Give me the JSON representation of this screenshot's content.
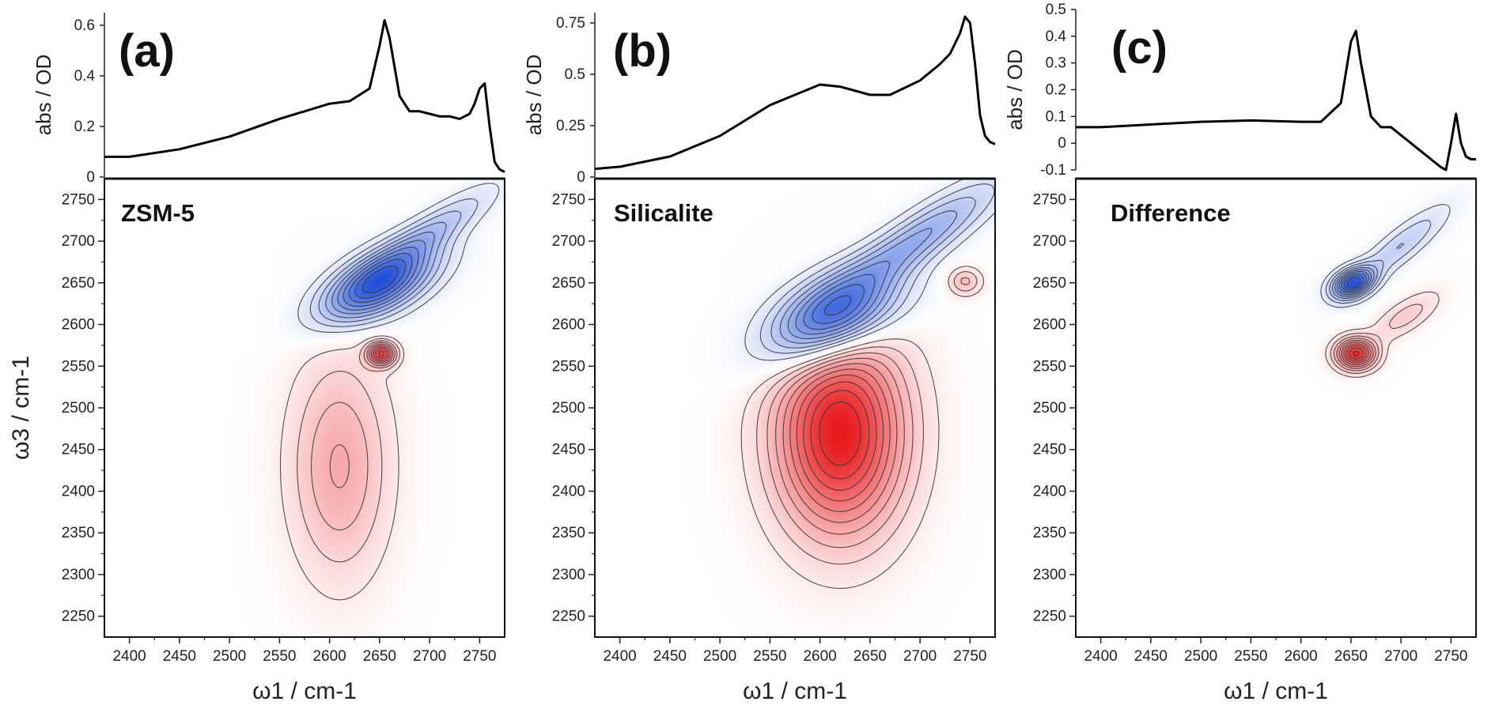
{
  "figure": {
    "colors": {
      "negative": "#1f4fd8",
      "positive": "#e8191c",
      "contour": "#333333",
      "spectrum": "#000000"
    }
  },
  "chart_data": [
    {
      "type": "line",
      "panel": "(a)",
      "sample": "ZSM-5",
      "top": {
        "ylabel": "abs / OD",
        "ylim": [
          0,
          0.65
        ],
        "yticks": [
          "0",
          "0.2",
          "0.4",
          "0.6"
        ],
        "x": [
          2375,
          2400,
          2450,
          2500,
          2550,
          2600,
          2620,
          2640,
          2650,
          2655,
          2660,
          2670,
          2680,
          2690,
          2700,
          2710,
          2720,
          2730,
          2740,
          2745,
          2750,
          2755,
          2760,
          2765,
          2770,
          2775
        ],
        "y": [
          0.08,
          0.08,
          0.11,
          0.16,
          0.23,
          0.29,
          0.3,
          0.35,
          0.52,
          0.62,
          0.55,
          0.32,
          0.26,
          0.26,
          0.25,
          0.24,
          0.24,
          0.23,
          0.25,
          0.29,
          0.35,
          0.37,
          0.2,
          0.06,
          0.03,
          0.02
        ]
      },
      "map": {
        "xlabel": "ω1 / cm-1",
        "ylabel": "ω3 / cm-1",
        "xlim": [
          2375,
          2775
        ],
        "ylim": [
          2225,
          2775
        ],
        "xticks": [
          "2400",
          "2450",
          "2500",
          "2550",
          "2600",
          "2650",
          "2700",
          "2750"
        ],
        "yticks": [
          "2250",
          "2300",
          "2350",
          "2400",
          "2450",
          "2500",
          "2550",
          "2600",
          "2650",
          "2700",
          "2750"
        ],
        "peaks": [
          {
            "sign": -1,
            "x": 2648,
            "y": 2648,
            "amp": 1.0,
            "sx": 45,
            "sy": 22,
            "rot": 35
          },
          {
            "sign": -1,
            "x": 2700,
            "y": 2710,
            "amp": 0.35,
            "sx": 55,
            "sy": 14,
            "rot": 40
          },
          {
            "sign": 1,
            "x": 2652,
            "y": 2565,
            "amp": 0.85,
            "sx": 10,
            "sy": 10,
            "rot": 0
          },
          {
            "sign": 1,
            "x": 2610,
            "y": 2430,
            "amp": 0.4,
            "sx": 35,
            "sy": 95,
            "rot": 0
          }
        ]
      }
    },
    {
      "type": "line",
      "panel": "(b)",
      "sample": "Silicalite",
      "top": {
        "ylabel": "abs / OD",
        "ylim": [
          0,
          0.8
        ],
        "yticks": [
          "0",
          "0.25",
          "0.5",
          "0.75"
        ],
        "x": [
          2375,
          2400,
          2450,
          2500,
          2550,
          2600,
          2620,
          2650,
          2670,
          2700,
          2720,
          2730,
          2740,
          2745,
          2750,
          2755,
          2760,
          2765,
          2770,
          2775
        ],
        "y": [
          0.04,
          0.05,
          0.1,
          0.2,
          0.35,
          0.45,
          0.44,
          0.4,
          0.4,
          0.47,
          0.55,
          0.6,
          0.7,
          0.78,
          0.75,
          0.55,
          0.3,
          0.2,
          0.17,
          0.16
        ]
      },
      "map": {
        "xlabel": "ω1 / cm-1",
        "ylabel": "ω3 / cm-1",
        "xlim": [
          2375,
          2775
        ],
        "ylim": [
          2225,
          2775
        ],
        "xticks": [
          "2400",
          "2450",
          "2500",
          "2550",
          "2600",
          "2650",
          "2700",
          "2750"
        ],
        "yticks": [
          "2250",
          "2300",
          "2350",
          "2400",
          "2450",
          "2500",
          "2550",
          "2600",
          "2650",
          "2700",
          "2750"
        ],
        "peaks": [
          {
            "sign": -1,
            "x": 2612,
            "y": 2610,
            "amp": 1.0,
            "sx": 50,
            "sy": 30,
            "rot": 38
          },
          {
            "sign": -1,
            "x": 2700,
            "y": 2705,
            "amp": 0.45,
            "sx": 70,
            "sy": 18,
            "rot": 40
          },
          {
            "sign": 1,
            "x": 2620,
            "y": 2470,
            "amp": 1.0,
            "sx": 45,
            "sy": 85,
            "rot": 0
          },
          {
            "sign": 1,
            "x": 2745,
            "y": 2652,
            "amp": 0.3,
            "sx": 12,
            "sy": 12,
            "rot": 0
          }
        ]
      }
    },
    {
      "type": "line",
      "panel": "(c)",
      "sample": "Difference",
      "top": {
        "ylabel": "abs / OD",
        "ylim": [
          -0.1,
          0.5
        ],
        "yticks": [
          "-0.1",
          "0",
          "0.1",
          "0.2",
          "0.3",
          "0.4",
          "0.5"
        ],
        "x": [
          2375,
          2400,
          2450,
          2500,
          2550,
          2600,
          2620,
          2640,
          2650,
          2655,
          2660,
          2670,
          2680,
          2690,
          2700,
          2710,
          2720,
          2730,
          2740,
          2745,
          2750,
          2755,
          2760,
          2765,
          2770,
          2775
        ],
        "y": [
          0.06,
          0.06,
          0.07,
          0.08,
          0.085,
          0.08,
          0.08,
          0.15,
          0.38,
          0.42,
          0.3,
          0.1,
          0.06,
          0.06,
          0.03,
          0.0,
          -0.03,
          -0.06,
          -0.09,
          -0.1,
          0.0,
          0.11,
          0.0,
          -0.05,
          -0.06,
          -0.06
        ]
      },
      "map": {
        "xlabel": "ω1 / cm-1",
        "ylabel": "ω3 / cm-1",
        "xlim": [
          2375,
          2775
        ],
        "ylim": [
          2225,
          2775
        ],
        "xticks": [
          "2400",
          "2450",
          "2500",
          "2550",
          "2600",
          "2650",
          "2700",
          "2750"
        ],
        "yticks": [
          "2250",
          "2300",
          "2350",
          "2400",
          "2450",
          "2500",
          "2550",
          "2600",
          "2650",
          "2700",
          "2750"
        ],
        "peaks": [
          {
            "sign": -1,
            "x": 2652,
            "y": 2650,
            "amp": 1.0,
            "sx": 16,
            "sy": 11,
            "rot": 35
          },
          {
            "sign": -1,
            "x": 2700,
            "y": 2695,
            "amp": 0.3,
            "sx": 45,
            "sy": 12,
            "rot": 45
          },
          {
            "sign": 1,
            "x": 2655,
            "y": 2565,
            "amp": 1.0,
            "sx": 14,
            "sy": 13,
            "rot": 0
          },
          {
            "sign": 1,
            "x": 2705,
            "y": 2610,
            "amp": 0.25,
            "sx": 30,
            "sy": 12,
            "rot": 40
          }
        ]
      }
    }
  ]
}
